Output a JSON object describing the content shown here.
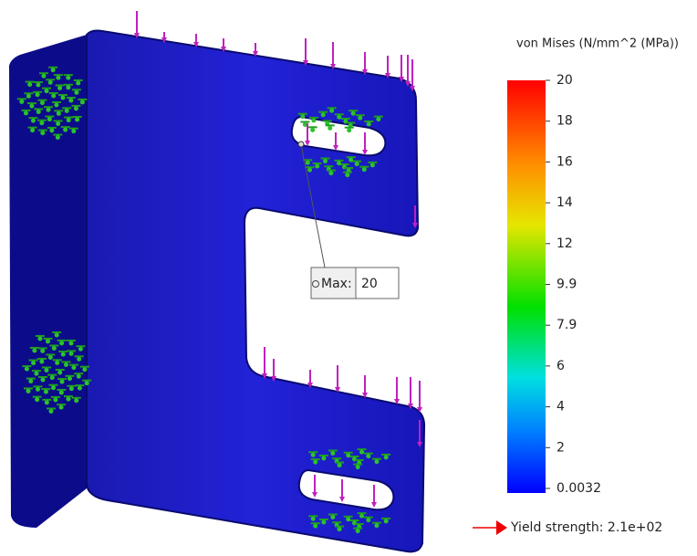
{
  "legend": {
    "title": "von Mises (N/mm^2 (MPa))",
    "ticks": [
      "20",
      "18",
      "16",
      "14",
      "12",
      "9.9",
      "7.9",
      "6",
      "4",
      "2",
      "0.0032"
    ]
  },
  "probe": {
    "label": "Max:",
    "value": "20"
  },
  "yield_strength": "Yield strength: 2.1e+02"
}
